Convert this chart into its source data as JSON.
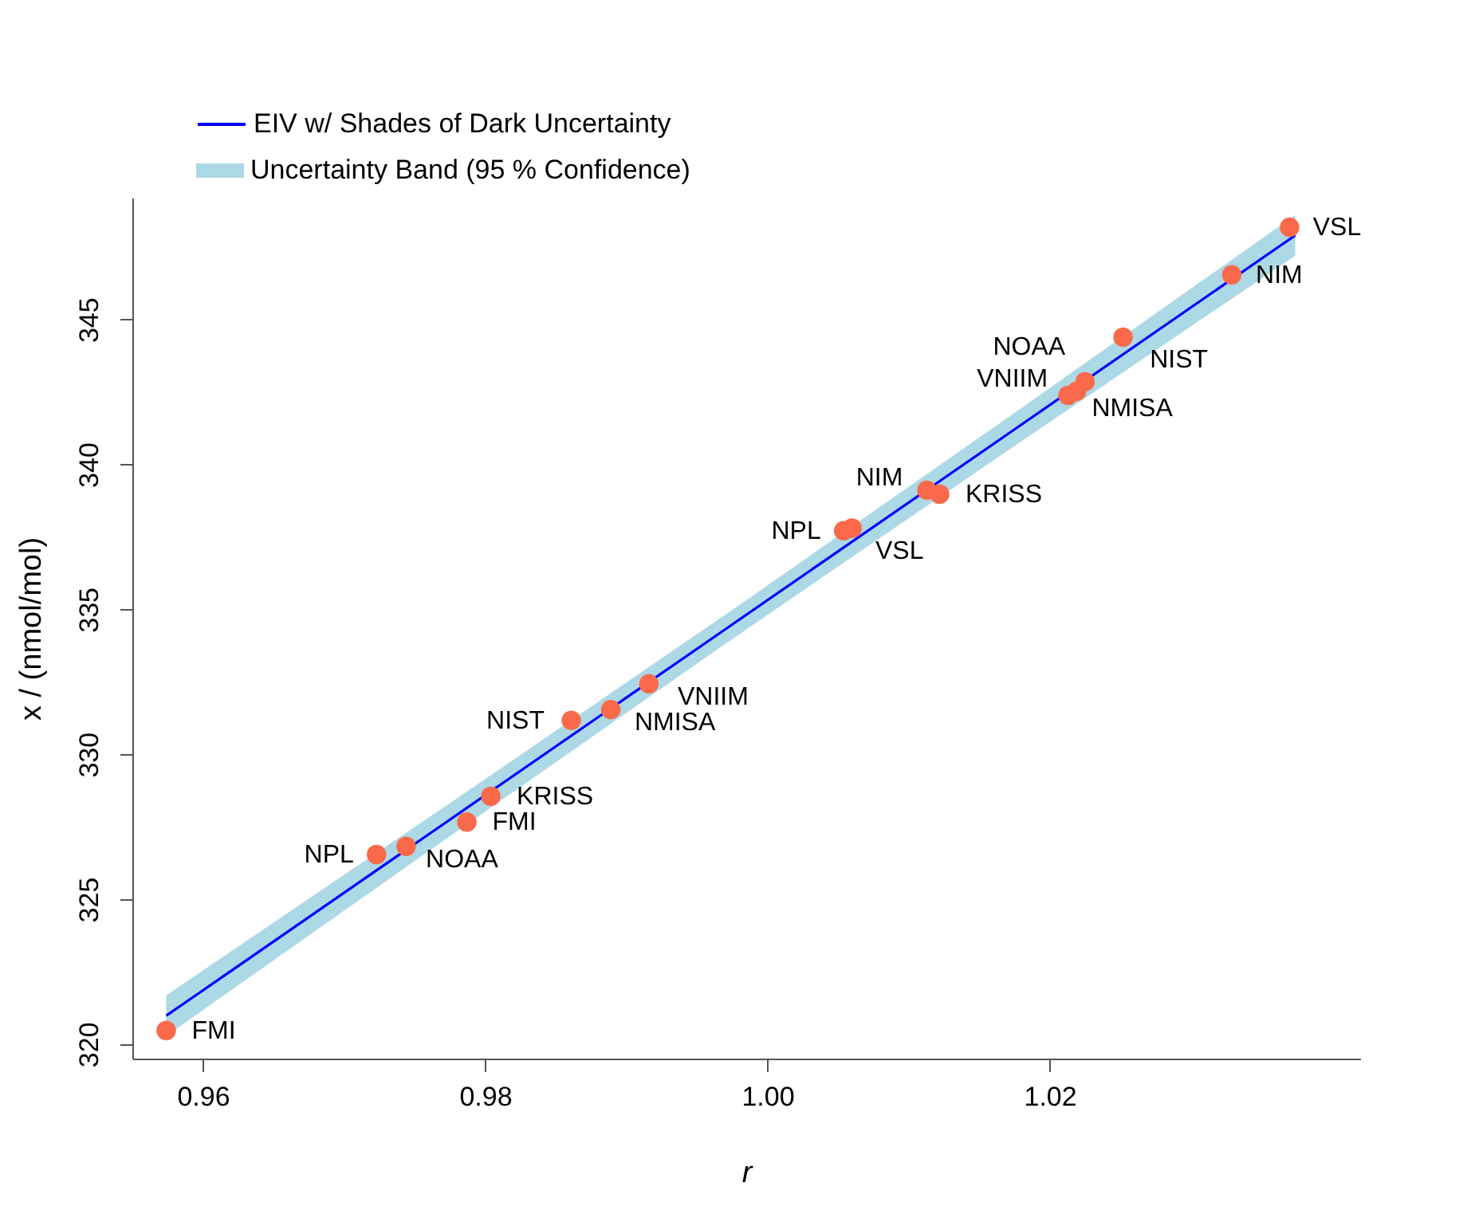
{
  "chart_data": {
    "type": "scatter",
    "xlabel": "r",
    "ylabel": "x / (nmol/mol)",
    "xlim": [
      0.955,
      1.042
    ],
    "ylim": [
      319.5,
      349.2
    ],
    "xticks": [
      {
        "value": 0.96,
        "label": "0.96"
      },
      {
        "value": 0.98,
        "label": "0.98"
      },
      {
        "value": 1.0,
        "label": "1.00"
      },
      {
        "value": 1.02,
        "label": "1.02"
      }
    ],
    "yticks": [
      320,
      325,
      330,
      335,
      340,
      345
    ],
    "grid": false,
    "legend": "top",
    "series": [
      {
        "name": "EIV w/ Shades of Dark Uncertainty",
        "type": "line",
        "color": "#0000ff",
        "x": [
          0.9574,
          0.9774,
          0.9974,
          1.0174,
          1.0374
        ],
        "values": [
          320.98,
          327.71,
          334.44,
          341.17,
          347.9
        ],
        "lower": [
          320.28,
          327.14,
          333.94,
          340.6,
          347.2
        ],
        "upper": [
          321.68,
          328.28,
          334.94,
          341.74,
          348.6
        ]
      },
      {
        "name": "Uncertainty Band (95 % Confidence)",
        "type": "area",
        "color": "#add8e6"
      },
      {
        "type": "scatter",
        "color": "#fa6a4a",
        "x": [
          0.9574,
          0.9723,
          0.9744,
          0.9787,
          0.9804,
          0.9861,
          0.9889,
          0.9916,
          1.0054,
          1.006,
          1.0113,
          1.0122,
          1.0213,
          1.0219,
          1.0225,
          1.0252,
          1.0329,
          1.037
        ],
        "values": [
          320.47,
          326.54,
          326.82,
          327.66,
          328.55,
          331.17,
          331.54,
          332.43,
          337.71,
          337.8,
          339.11,
          338.97,
          342.38,
          342.52,
          342.85,
          344.39,
          346.54,
          348.18
        ]
      }
    ],
    "annotations": [
      {
        "text": "FMI",
        "x": 0.9574,
        "y": 320.47
      },
      {
        "text": "NPL",
        "x": 0.9723,
        "y": 326.54
      },
      {
        "text": "NOAA",
        "x": 0.9744,
        "y": 326.82
      },
      {
        "text": "FMI",
        "x": 0.9787,
        "y": 327.66
      },
      {
        "text": "KRISS",
        "x": 0.9804,
        "y": 328.55
      },
      {
        "text": "NIST",
        "x": 0.9861,
        "y": 331.17
      },
      {
        "text": "NMISA",
        "x": 0.9889,
        "y": 331.54
      },
      {
        "text": "VNIIM",
        "x": 0.9916,
        "y": 332.43
      },
      {
        "text": "NPL",
        "x": 1.0054,
        "y": 337.71
      },
      {
        "text": "VSL",
        "x": 1.006,
        "y": 337.8
      },
      {
        "text": "NIM",
        "x": 1.0113,
        "y": 339.11
      },
      {
        "text": "KRISS",
        "x": 1.0122,
        "y": 338.97
      },
      {
        "text": "NMISA",
        "x": 1.0213,
        "y": 342.38
      },
      {
        "text": "VNIIM",
        "x": 1.0219,
        "y": 342.52
      },
      {
        "text": "NOAA",
        "x": 1.0225,
        "y": 342.85
      },
      {
        "text": "NIST",
        "x": 1.0252,
        "y": 344.39
      },
      {
        "text": "NIM",
        "x": 1.0329,
        "y": 346.54
      },
      {
        "text": "VSL",
        "x": 1.037,
        "y": 348.18
      }
    ]
  }
}
